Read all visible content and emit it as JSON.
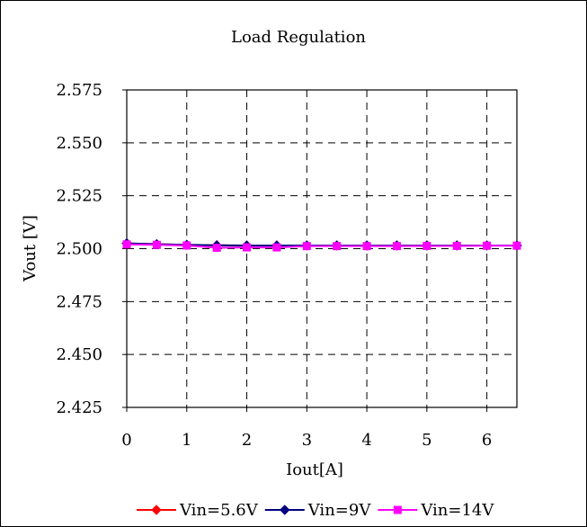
{
  "chart_data": {
    "type": "line",
    "title": "Load Regulation",
    "xlabel": "Iout[A]",
    "ylabel": "Vout [V]",
    "xlim": [
      0,
      6.5
    ],
    "ylim": [
      2.425,
      2.575
    ],
    "x_ticks": [
      0,
      1,
      2,
      3,
      4,
      5,
      6
    ],
    "y_ticks": [
      2.425,
      2.45,
      2.475,
      2.5,
      2.525,
      2.55,
      2.575
    ],
    "y_tick_labels": [
      "2.425",
      "2.450",
      "2.475",
      "2.500",
      "2.525",
      "2.550",
      "2.575"
    ],
    "grid": true,
    "legend_position": "bottom",
    "x": [
      0,
      0.5,
      1,
      1.5,
      2,
      2.5,
      3,
      3.5,
      4,
      4.5,
      5,
      5.5,
      6,
      6.5
    ],
    "series": [
      {
        "name": "Vin=5.6V",
        "color": "#ff0000",
        "marker": "diamond",
        "values": [
          2.5025,
          2.5021,
          2.5018,
          2.5016,
          2.5015,
          2.5015,
          2.5015,
          2.5015,
          2.5015,
          2.5015,
          2.5015,
          2.5015,
          2.5015,
          2.5015
        ]
      },
      {
        "name": "Vin=9V",
        "color": "#000080",
        "marker": "diamond",
        "values": [
          2.5025,
          2.5021,
          2.5018,
          2.5016,
          2.5015,
          2.5015,
          2.5015,
          2.5015,
          2.5015,
          2.5015,
          2.5015,
          2.5015,
          2.5015,
          2.5015
        ]
      },
      {
        "name": "Vin=14V",
        "color": "#ff00ff",
        "marker": "square",
        "values": [
          2.502,
          2.5018,
          2.5015,
          2.5004,
          2.5006,
          2.5006,
          2.5012,
          2.5012,
          2.5012,
          2.5012,
          2.5013,
          2.5013,
          2.5014,
          2.5014
        ]
      }
    ]
  }
}
